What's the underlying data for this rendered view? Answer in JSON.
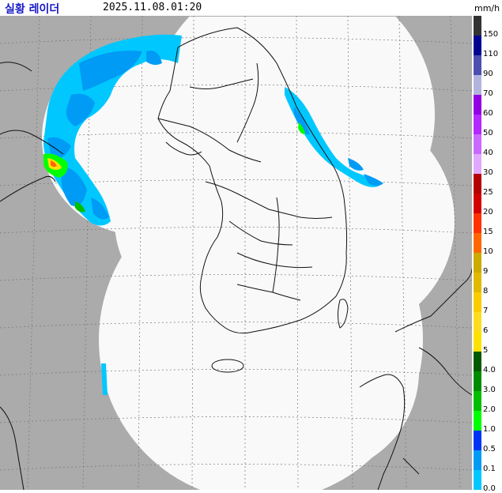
{
  "header": {
    "title": "실황 레이더",
    "timestamp": "2025.11.08.01:20",
    "unit": "mm/h"
  },
  "legend": {
    "entries": [
      {
        "label": "150",
        "color": "#333333"
      },
      {
        "label": "110",
        "color": "#000390"
      },
      {
        "label": "90",
        "color": "#4c4eb1"
      },
      {
        "label": "70",
        "color": "#b3b4de"
      },
      {
        "label": "60",
        "color": "#9300e4"
      },
      {
        "label": "50",
        "color": "#b329ff"
      },
      {
        "label": "40",
        "color": "#c969ff"
      },
      {
        "label": "30",
        "color": "#e0a9ff"
      },
      {
        "label": "25",
        "color": "#b40000"
      },
      {
        "label": "20",
        "color": "#d20000"
      },
      {
        "label": "15",
        "color": "#ff3200"
      },
      {
        "label": "10",
        "color": "#ff6600"
      },
      {
        "label": "9",
        "color": "#ccaa00"
      },
      {
        "label": "8",
        "color": "#e0b900"
      },
      {
        "label": "7",
        "color": "#f9cd00"
      },
      {
        "label": "6",
        "color": "#ffdc1f"
      },
      {
        "label": "5",
        "color": "#ffe100"
      },
      {
        "label": "4.0",
        "color": "#005a00"
      },
      {
        "label": "3.0",
        "color": "#008c00"
      },
      {
        "label": "2.0",
        "color": "#00be00"
      },
      {
        "label": "1.0",
        "color": "#00ff00"
      },
      {
        "label": "0.5",
        "color": "#0033f5"
      },
      {
        "label": "0.1",
        "color": "#009bf5"
      },
      {
        "label": "0.0",
        "color": "#00c8ff"
      }
    ]
  },
  "colors": {
    "coverage": "#f9f9f9",
    "outside": "#ababab",
    "light_rain": "#00c8ff",
    "moderate_rain": "#009bf5",
    "heavy_rain": "#0033f5"
  }
}
